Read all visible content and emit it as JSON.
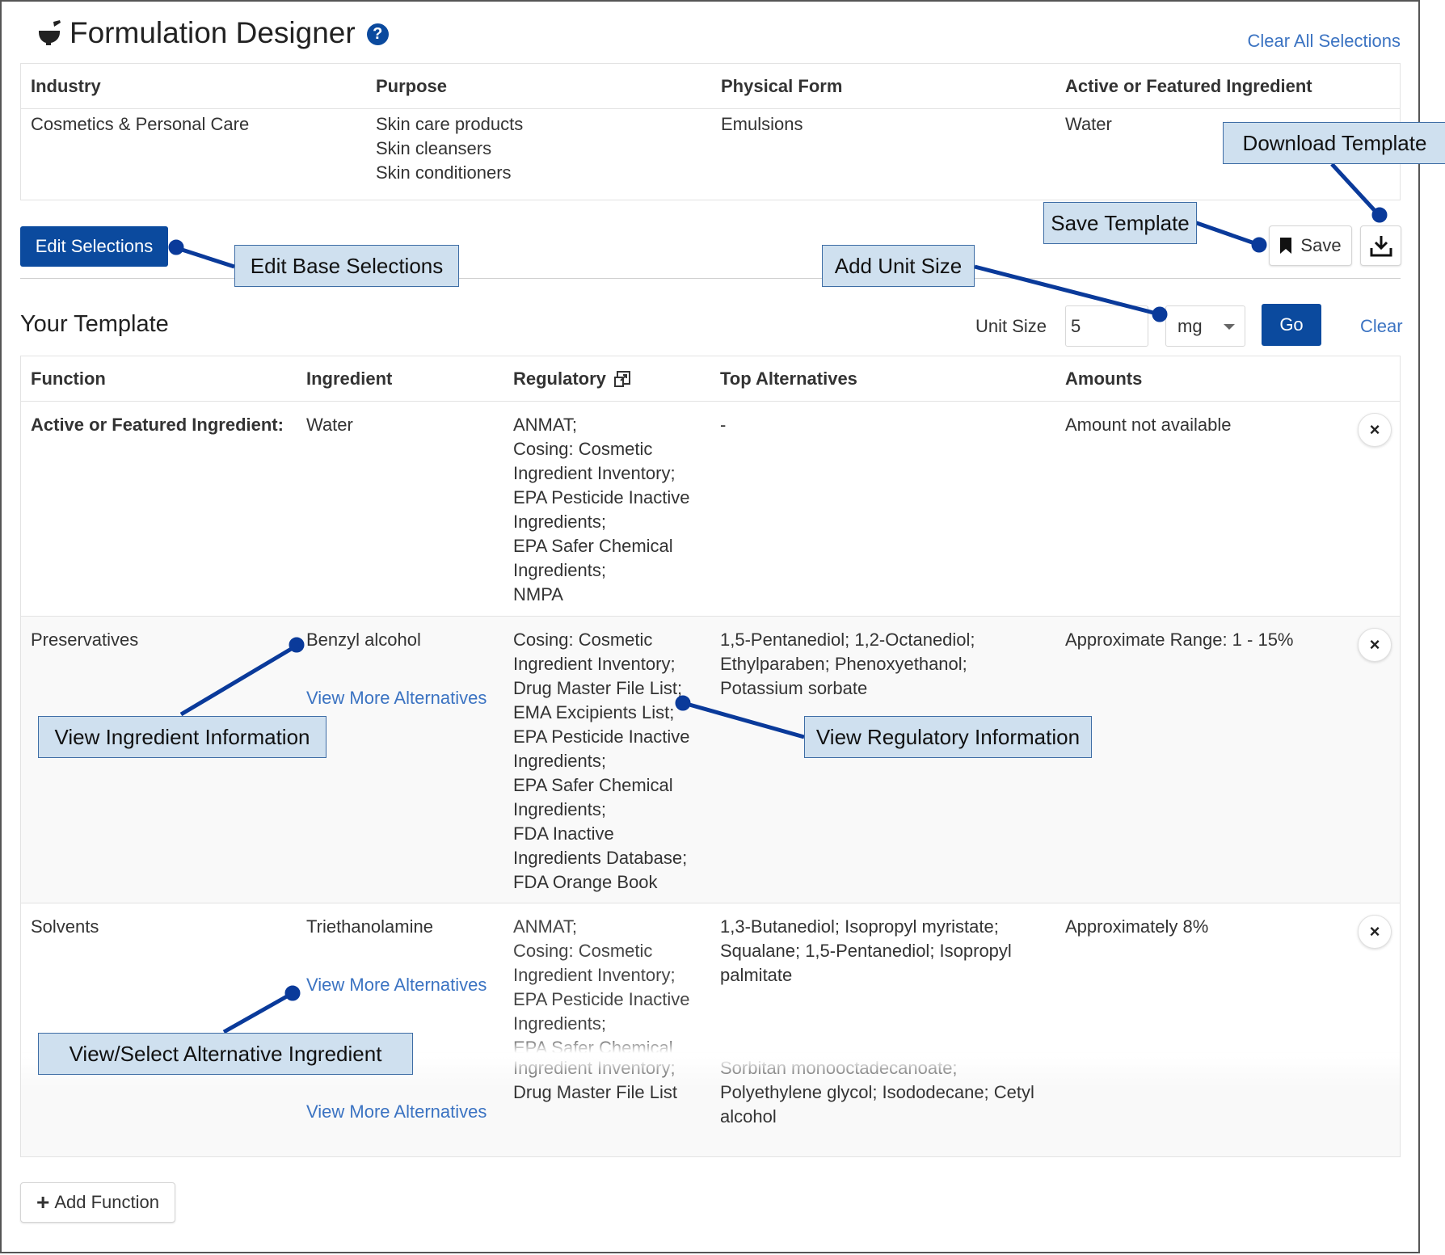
{
  "header": {
    "title": "Formulation Designer",
    "help_glyph": "?",
    "clear_all": "Clear All Selections"
  },
  "selections": {
    "headers": [
      "Industry",
      "Purpose",
      "Physical Form",
      "Active or Featured Ingredient"
    ],
    "industry": "Cosmetics & Personal Care",
    "purpose": [
      "Skin care products",
      "Skin cleansers",
      "Skin conditioners"
    ],
    "physical_form": "Emulsions",
    "active_ingredient": "Water"
  },
  "buttons": {
    "edit_selections": "Edit Selections",
    "save": "Save",
    "go": "Go",
    "clear": "Clear",
    "add_function": "Add Function"
  },
  "template": {
    "title": "Your Template",
    "unit_size_label": "Unit Size",
    "unit_size_value": "5",
    "unit_options_selected": "mg",
    "headers": [
      "Function",
      "Ingredient",
      "Regulatory",
      "Top Alternatives",
      "Amounts"
    ],
    "rows": [
      {
        "function": "Active or Featured Ingredient:",
        "ingredient": "Water",
        "regulatory": "ANMAT;<br>Cosing: Cosmetic Ingredient Inventory;<br>EPA Pesticide Inactive Ingredients;<br>EPA Safer Chemical Ingredients;<br>NMPA",
        "alternatives": "-",
        "amount": "Amount not available",
        "view_more": ""
      },
      {
        "function": "Preservatives",
        "ingredient": "Benzyl alcohol",
        "regulatory": "Cosing: Cosmetic Ingredient Inventory;<br>Drug Master File List;<br>EMA Excipients List;<br>EPA Pesticide Inactive Ingredients;<br>EPA Safer Chemical Ingredients;<br>FDA Inactive Ingredients Database;<br>FDA Orange Book",
        "alternatives": "1,5-Pentanediol; 1,2-Octanediol; Ethylparaben; Phenoxyethanol; Potassium sorbate",
        "amount": "Approximate Range: 1 - 15%",
        "view_more": "View More Alternatives"
      },
      {
        "function": "Solvents",
        "ingredient": "Triethanolamine",
        "regulatory": "ANMAT;<br>Cosing: Cosmetic Ingredient Inventory;<br>EPA Pesticide Inactive Ingredients;<br>EPA Safer Chemical",
        "alternatives": "1,3-Butanediol; Isopropyl myristate; Squalane; 1,5-Pentanediol; Isopropyl palmitate",
        "amount": "Approximately 8%",
        "view_more": "View More Alternatives"
      },
      {
        "function": "",
        "ingredient": "",
        "regulatory": "Ingredient Inventory;<br>Drug Master File List",
        "alternatives": "Sorbitan monooctadecanoate; Polyethylene glycol; Isododecane; Cetyl alcohol",
        "amount": "",
        "view_more": "View More Alternatives"
      }
    ],
    "remove_glyph": "×"
  },
  "callouts": {
    "download_template": "Download Template",
    "save_template": "Save Template",
    "edit_base_selections": "Edit Base Selections",
    "add_unit_size": "Add Unit Size",
    "view_ingredient_information": "View Ingredient Information",
    "view_regulatory_information": "View Regulatory Information",
    "view_select_alternative": "View/Select Alternative Ingredient"
  },
  "icons": {
    "title_icon": "mortar-pestle-icon",
    "save_icon": "bookmark-icon",
    "download_icon": "download-icon",
    "regulatory_icon": "popout-icon",
    "plus_icon": "plus-icon",
    "remove_icon": "close-icon"
  },
  "colors": {
    "primary": "#0b4a9e",
    "link": "#3b73c2",
    "callout_fill": "#cfe0ef",
    "callout_line": "#0a3a9a"
  }
}
